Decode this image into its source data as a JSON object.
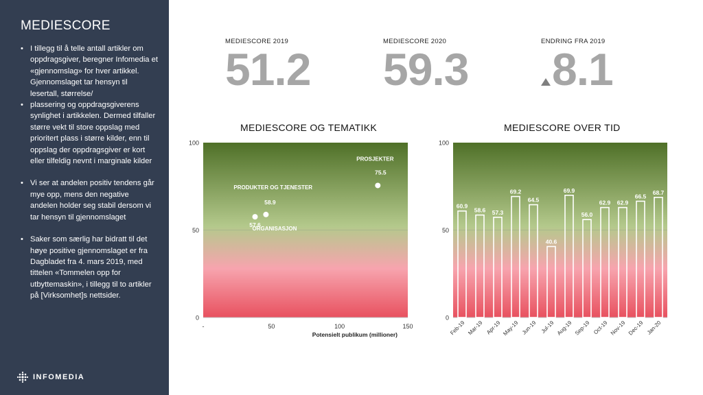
{
  "sidebar": {
    "title": "MEDIESCORE",
    "bullets": [
      "I tillegg til å telle antall artikler om oppdragsgiver, beregner Infomedia et «gjennomslag» for hver artikkel. Gjennomslaget tar hensyn til lesertall, størrelse/",
      "plassering og oppdragsgiverens synlighet i artikkelen. Dermed tilfaller større vekt til store oppslag med prioritert plass i større kilder, enn til oppslag der oppdragsgiver er kort eller tilfeldig nevnt i marginale kilder",
      "Vi ser at andelen positiv tendens går mye opp, mens den negative andelen holder seg stabil dersom vi tar hensyn til gjennomslaget",
      "Saker som særlig har bidratt til det høye positive gjennomslaget er fra Dagbladet fra 4. mars 2019, med tittelen «Tommelen opp for utbyttemaskin», i tillegg til to artikler på [Virksomhet]s nettsider."
    ],
    "logo_text": "INFOMEDIA"
  },
  "kpis": [
    {
      "label": "MEDIESCORE 2019",
      "value": "51.2"
    },
    {
      "label": "MEDIESCORE 2020",
      "value": "59.3"
    },
    {
      "label": "ENDRING FRA 2019",
      "value": "8.1",
      "icon": "triangle-up-icon"
    }
  ],
  "colors": {
    "sidebar_bg": "#333e51",
    "gradient_top": "#4f7028",
    "gradient_mid": "#b4c98c",
    "gradient_pink": "#f7a4ae",
    "gradient_bottom": "#e8515f",
    "kpi_value": "#a6a6a6"
  },
  "chart_data": [
    {
      "type": "scatter",
      "title": "MEDIESCORE OG TEMATIKK",
      "xlabel": "Potensielt publikum (millioner)",
      "ylabel": "",
      "xlim": [
        0,
        150
      ],
      "ylim": [
        0,
        100
      ],
      "x_ticks": [
        "-",
        "50",
        "100",
        "150"
      ],
      "y_ticks": [
        "0",
        "50",
        "100"
      ],
      "points": [
        {
          "name": "ORGANISASJON",
          "value_label": "57.6",
          "x": 38,
          "y": 57.6
        },
        {
          "name": "PRODUKTER OG TJENESTER",
          "value_label": "58.9",
          "x": 46,
          "y": 58.9
        },
        {
          "name": "PROSJEKTER",
          "value_label": "75.5",
          "x": 128,
          "y": 75.5
        }
      ]
    },
    {
      "type": "bar",
      "title": "MEDIESCORE OVER TID",
      "xlabel": "",
      "ylabel": "",
      "ylim": [
        0,
        100
      ],
      "y_ticks": [
        "0",
        "50",
        "100"
      ],
      "categories": [
        "Feb-19",
        "Mar-19",
        "Apr-19",
        "May-19",
        "Jun-19",
        "Jul-19",
        "Aug-19",
        "Sep-19",
        "Oct-19",
        "Nov-19",
        "Dec-19",
        "Jan-20"
      ],
      "values": [
        60.9,
        58.6,
        57.3,
        69.2,
        64.5,
        40.6,
        69.9,
        56.0,
        62.9,
        62.9,
        66.5,
        68.7
      ],
      "labels": [
        "60.9",
        "58.6",
        "57.3",
        "69.2",
        "64.5",
        "40.6",
        "69.9",
        "56.0",
        "62.9",
        "62.9",
        "66.5",
        "68.7"
      ]
    }
  ]
}
